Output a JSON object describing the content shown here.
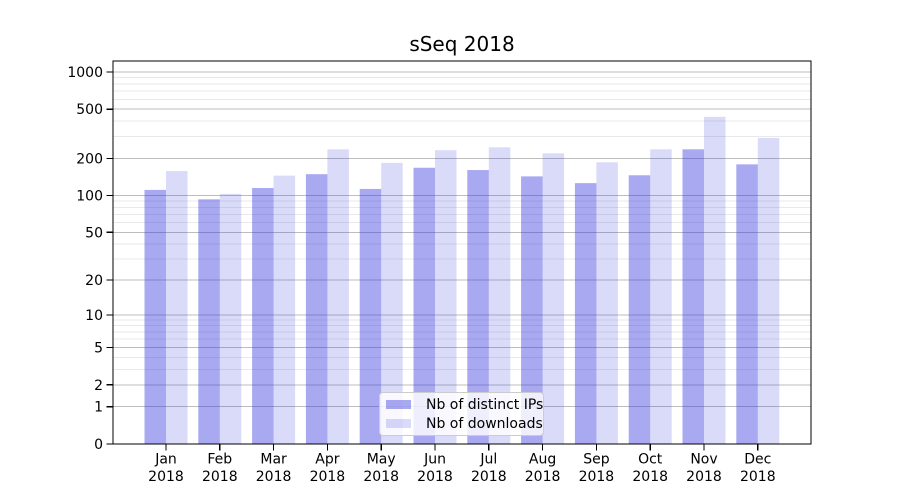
{
  "chart_data": {
    "type": "bar",
    "title": "sSeq 2018",
    "categories": [
      "Jan 2018",
      "Feb 2018",
      "Mar 2018",
      "Apr 2018",
      "May 2018",
      "Jun 2018",
      "Jul 2018",
      "Aug 2018",
      "Sep 2018",
      "Oct 2018",
      "Nov 2018",
      "Dec 2018"
    ],
    "series": [
      {
        "name": "Nb of distinct IPs",
        "color": "rgba(51,51,221,0.42)",
        "values": [
          111,
          93,
          115,
          149,
          113,
          168,
          161,
          143,
          126,
          146,
          237,
          179
        ]
      },
      {
        "name": "Nb of downloads",
        "color": "rgba(51,51,221,0.18)",
        "values": [
          158,
          103,
          145,
          237,
          184,
          233,
          246,
          220,
          186,
          237,
          434,
          293
        ]
      }
    ],
    "xlabel": "",
    "ylabel": "",
    "yscale": "log1p",
    "ylim": [
      0,
      1226
    ],
    "yticks": [
      0,
      1,
      2,
      5,
      10,
      20,
      50,
      100,
      200,
      500,
      1000
    ],
    "ytick_labels": [
      "0",
      "1",
      "2",
      "5",
      "10",
      "20",
      "50",
      "100",
      "200",
      "500",
      "1000"
    ],
    "yticks_minor": [
      3,
      4,
      6,
      7,
      8,
      9,
      30,
      40,
      60,
      70,
      80,
      90,
      300,
      400,
      600,
      700,
      800,
      900
    ],
    "grid": true,
    "legend_position": "lower center"
  },
  "colors": {
    "major_grid": "#bdbdbd",
    "minor_grid": "#e9e9e9",
    "axis": "#000000",
    "text": "#000000"
  }
}
